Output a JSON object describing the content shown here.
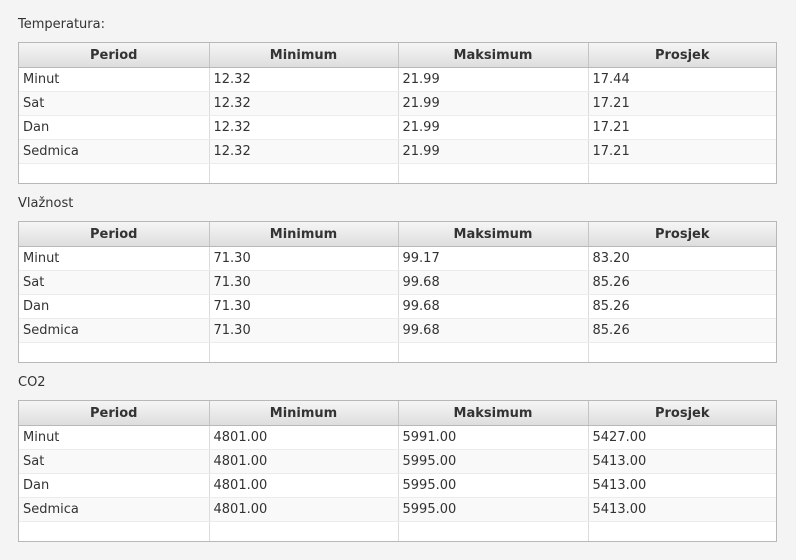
{
  "columns": [
    "Period",
    "Minimum",
    "Maksimum",
    "Prosjek"
  ],
  "sections": [
    {
      "title": "Temperatura:",
      "rows": [
        [
          "Minut",
          "12.32",
          "21.99",
          "17.44"
        ],
        [
          "Sat",
          "12.32",
          "21.99",
          "17.21"
        ],
        [
          "Dan",
          "12.32",
          "21.99",
          "17.21"
        ],
        [
          "Sedmica",
          "12.32",
          "21.99",
          "17.21"
        ]
      ]
    },
    {
      "title": "Vlažnost",
      "rows": [
        [
          "Minut",
          "71.30",
          "99.17",
          "83.20"
        ],
        [
          "Sat",
          "71.30",
          "99.68",
          "85.26"
        ],
        [
          "Dan",
          "71.30",
          "99.68",
          "85.26"
        ],
        [
          "Sedmica",
          "71.30",
          "99.68",
          "85.26"
        ]
      ]
    },
    {
      "title": "CO2",
      "rows": [
        [
          "Minut",
          "4801.00",
          "5991.00",
          "5427.00"
        ],
        [
          "Sat",
          "4801.00",
          "5995.00",
          "5413.00"
        ],
        [
          "Dan",
          "4801.00",
          "5995.00",
          "5413.00"
        ],
        [
          "Sedmica",
          "4801.00",
          "5995.00",
          "5413.00"
        ]
      ]
    }
  ]
}
